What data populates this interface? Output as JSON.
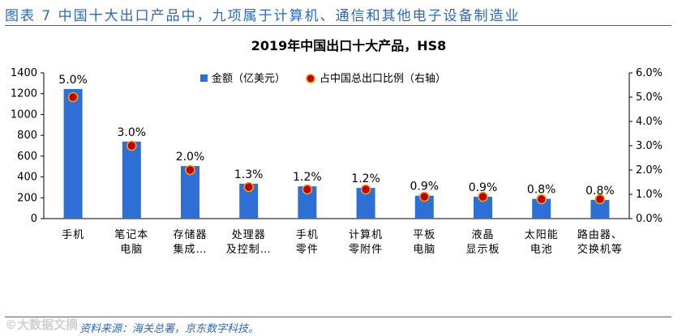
{
  "figure": {
    "caption": "图表 7 中国十大出口产品中，九项属于计算机、通信和其他电子设备制造业",
    "source": "资料来源：海关总署，京东数字科技。",
    "watermark": "©大数据文摘"
  },
  "colors": {
    "bar": "#2e6fd6",
    "marker": "#c00000",
    "marker_ring": "#e8a317",
    "caption": "#2e67b8",
    "text": "#000000"
  },
  "chart_data": {
    "type": "bar",
    "title": "2019年中国出口十大产品，HS8",
    "categories": [
      [
        "手机"
      ],
      [
        "笔记本",
        "电脑"
      ],
      [
        "存储器",
        "集成…"
      ],
      [
        "处理器",
        "及控制…"
      ],
      [
        "手机",
        "零件"
      ],
      [
        "计算机",
        "零附件"
      ],
      [
        "平板",
        "电脑"
      ],
      [
        "液晶",
        "显示板"
      ],
      [
        "太阳能",
        "电池"
      ],
      [
        "路由器、",
        "交换机等"
      ]
    ],
    "series": [
      {
        "name": "金额（亿美元）",
        "type": "bar",
        "axis": "left",
        "values": [
          1245,
          740,
          505,
          335,
          310,
          295,
          220,
          210,
          190,
          180
        ]
      },
      {
        "name": "占中国总出口比例（右轴）",
        "type": "scatter",
        "axis": "right",
        "values": [
          5.0,
          3.0,
          2.0,
          1.3,
          1.2,
          1.2,
          0.9,
          0.9,
          0.8,
          0.8
        ]
      }
    ],
    "data_labels": [
      "5.0%",
      "3.0%",
      "2.0%",
      "1.3%",
      "1.2%",
      "1.2%",
      "0.9%",
      "0.9%",
      "0.8%",
      "0.8%"
    ],
    "ylim_left": [
      0,
      1400
    ],
    "yticks_left": [
      0,
      200,
      400,
      600,
      800,
      1000,
      1200,
      1400
    ],
    "ylim_right": [
      0,
      6
    ],
    "yticks_right": [
      "0.0%",
      "1.0%",
      "2.0%",
      "3.0%",
      "4.0%",
      "5.0%",
      "6.0%"
    ],
    "legend": "top-center",
    "grid": false
  }
}
